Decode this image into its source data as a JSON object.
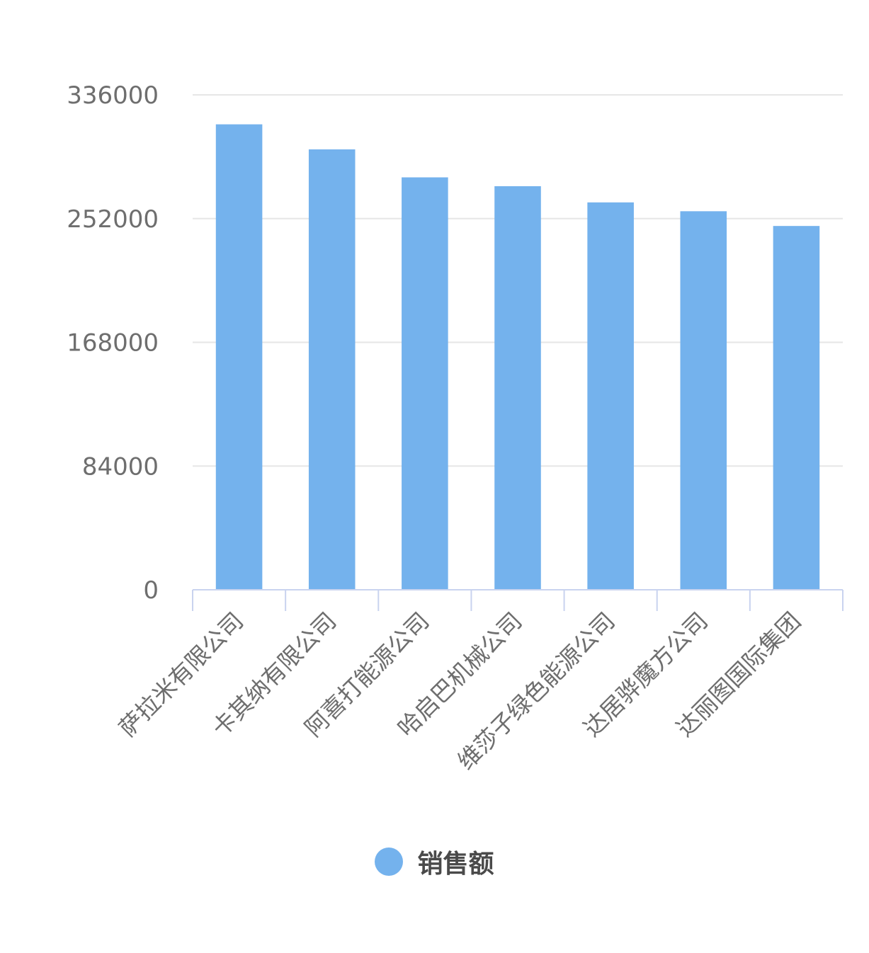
{
  "chart_data": {
    "type": "bar",
    "categories": [
      "萨拉米有限公司",
      "卡其纳有限公司",
      "阿喜打能源公司",
      "哈启巴机械公司",
      "维莎子绿色能源公司",
      "达居骅魔方公司",
      "达丽图国际集团"
    ],
    "series": [
      {
        "name": "销售额",
        "color": "#74b2ed",
        "values": [
          316000,
          299000,
          280000,
          274000,
          263000,
          257000,
          247000
        ]
      }
    ],
    "yticks": [
      "0",
      "84000",
      "168000",
      "252000",
      "336000"
    ],
    "ylim": [
      0,
      336000
    ],
    "grid": true,
    "legend_position": "bottom-center"
  },
  "legend": {
    "label": "销售额",
    "color": "#74b2ed"
  }
}
